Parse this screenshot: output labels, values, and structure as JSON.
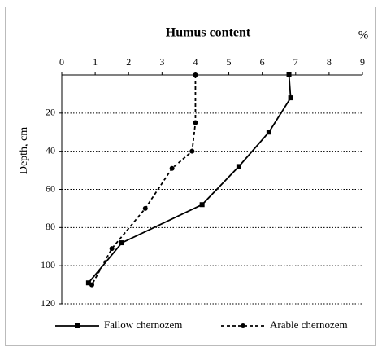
{
  "chart_data": {
    "type": "line",
    "title": "Humus content",
    "x_unit": "%",
    "ylabel": "Depth, cm",
    "xlim": [
      0,
      9
    ],
    "xticks": [
      0,
      1,
      2,
      3,
      4,
      5,
      6,
      7,
      8,
      9
    ],
    "ylim": [
      0,
      120
    ],
    "yticks": [
      20,
      40,
      60,
      80,
      100,
      120
    ],
    "y_inverted": true,
    "x_axis_position": "top",
    "grid": true,
    "series": [
      {
        "name": "Fallow chernozem",
        "color": "#000000",
        "line_style": "solid",
        "marker": "square",
        "x": [
          6.8,
          6.85,
          6.2,
          5.3,
          4.2,
          1.8,
          0.8
        ],
        "values": [
          0,
          12,
          30,
          48,
          68,
          88,
          109
        ]
      },
      {
        "name": "Arable chernozem",
        "color": "#000000",
        "line_style": "dashed",
        "marker": "circle",
        "x": [
          4.0,
          4.0,
          3.9,
          3.3,
          2.5,
          1.5,
          0.9
        ],
        "values": [
          0,
          25,
          40,
          49,
          70,
          91,
          110
        ]
      }
    ]
  }
}
